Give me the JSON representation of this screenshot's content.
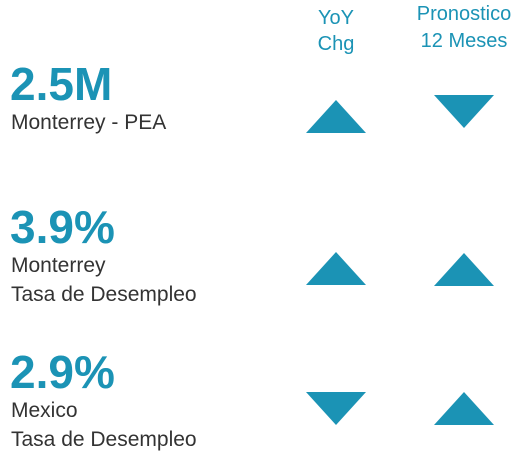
{
  "header": {
    "columns": [
      [
        "YoY",
        "Chg"
      ],
      [
        "Pronostico",
        "12 Meses"
      ]
    ]
  },
  "color": "#1b93b5",
  "rows": [
    {
      "value": "2.5M",
      "label_lines": [
        "Monterrey - PEA"
      ],
      "directions": [
        "up",
        "down"
      ]
    },
    {
      "value": "3.9%",
      "label_lines": [
        "Monterrey",
        "Tasa de Desempleo"
      ],
      "directions": [
        "up",
        "up"
      ]
    },
    {
      "value": "2.9%",
      "label_lines": [
        "Mexico",
        "Tasa de Desempleo"
      ],
      "directions": [
        "down",
        "up"
      ]
    }
  ]
}
